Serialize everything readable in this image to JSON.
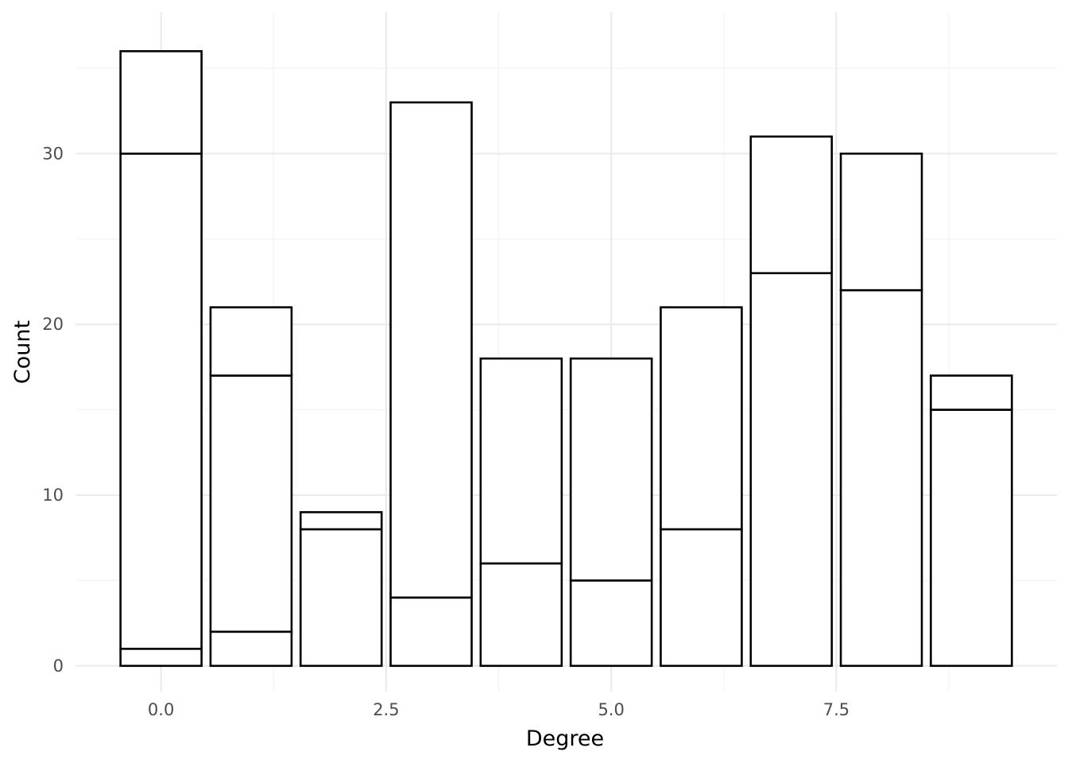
{
  "chart_data": {
    "type": "bar",
    "stacked": true,
    "title": "",
    "xlabel": "Degree",
    "ylabel": "Count",
    "x": [
      0,
      1,
      2,
      3,
      4,
      5,
      6,
      7,
      8,
      9
    ],
    "stack_boundaries": [
      [
        1,
        30,
        36
      ],
      [
        2,
        17,
        21
      ],
      [
        8,
        9
      ],
      [
        4,
        33
      ],
      [
        6,
        18
      ],
      [
        5,
        18
      ],
      [
        8,
        21
      ],
      [
        23,
        31
      ],
      [
        22,
        30
      ],
      [
        15,
        17
      ]
    ],
    "totals": [
      36,
      21,
      9,
      33,
      18,
      18,
      21,
      31,
      30,
      17
    ],
    "xlim": [
      -0.95,
      9.95
    ],
    "ylim": [
      -1.5,
      38.3
    ],
    "x_ticks": [
      0.0,
      2.5,
      5.0,
      7.5
    ],
    "x_tick_labels": [
      "0.0",
      "2.5",
      "5.0",
      "7.5"
    ],
    "y_ticks": [
      0,
      10,
      20,
      30
    ],
    "y_tick_labels": [
      "0",
      "10",
      "20",
      "30"
    ],
    "grid": true,
    "legend": "none",
    "colors": {
      "bar_fill": "#ffffff",
      "bar_outline": "#000000",
      "grid_major": "#ebebeb",
      "grid_minor": "#f3f3f3",
      "tick_text": "#4d4d4d",
      "background": "#ffffff"
    }
  }
}
